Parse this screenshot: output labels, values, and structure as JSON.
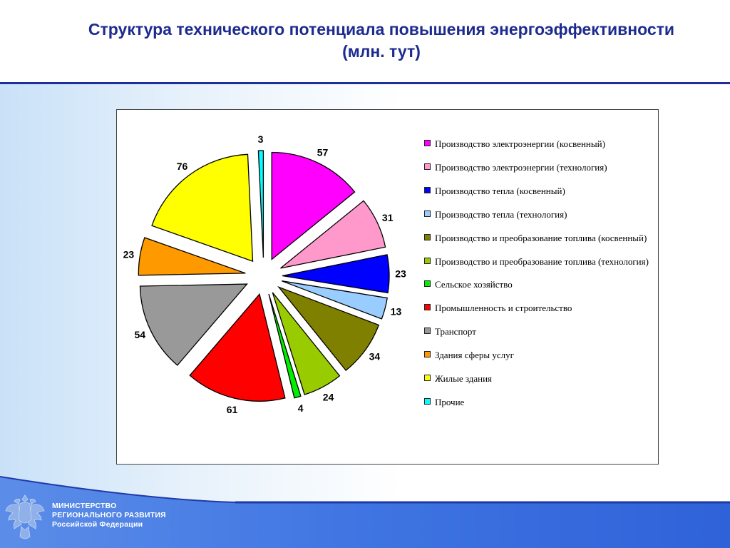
{
  "title": {
    "line1": "Структура технического потенциала повышения энергоэффективности",
    "line2": "(млн. тут)"
  },
  "footer": {
    "line1": "МИНИСТЕРСТВО",
    "line2": "РЕГИОНАЛЬНОГО РАЗВИТИЯ",
    "line3": "Российской Федерации"
  },
  "colors": {
    "accent": "#1f2f9a",
    "footer": "#3a6ee0"
  },
  "chart_data": {
    "type": "pie",
    "title": "",
    "categories": [
      "Производство электроэнергии (косвенный)",
      "Производство электроэнергии (технология)",
      "Производство тепла (косвенный)",
      "Производство тепла (технология)",
      "Производство и преобразование топлива (косвенный)",
      "Производство и преобразование топлива (технология)",
      "Сельское хозяйство",
      "Промышленность и строительство",
      "Транспорт",
      "Здания сферы услуг",
      "Жилые здания",
      "Прочие"
    ],
    "values": [
      57,
      31,
      23,
      13,
      34,
      24,
      4,
      61,
      54,
      23,
      76,
      3
    ],
    "colors": [
      "#ff00ff",
      "#ff99cc",
      "#0000ff",
      "#99ccff",
      "#808000",
      "#99cc00",
      "#00ee00",
      "#ff0000",
      "#999999",
      "#ff9900",
      "#ffff00",
      "#00ffff"
    ],
    "legend_position": "right"
  }
}
